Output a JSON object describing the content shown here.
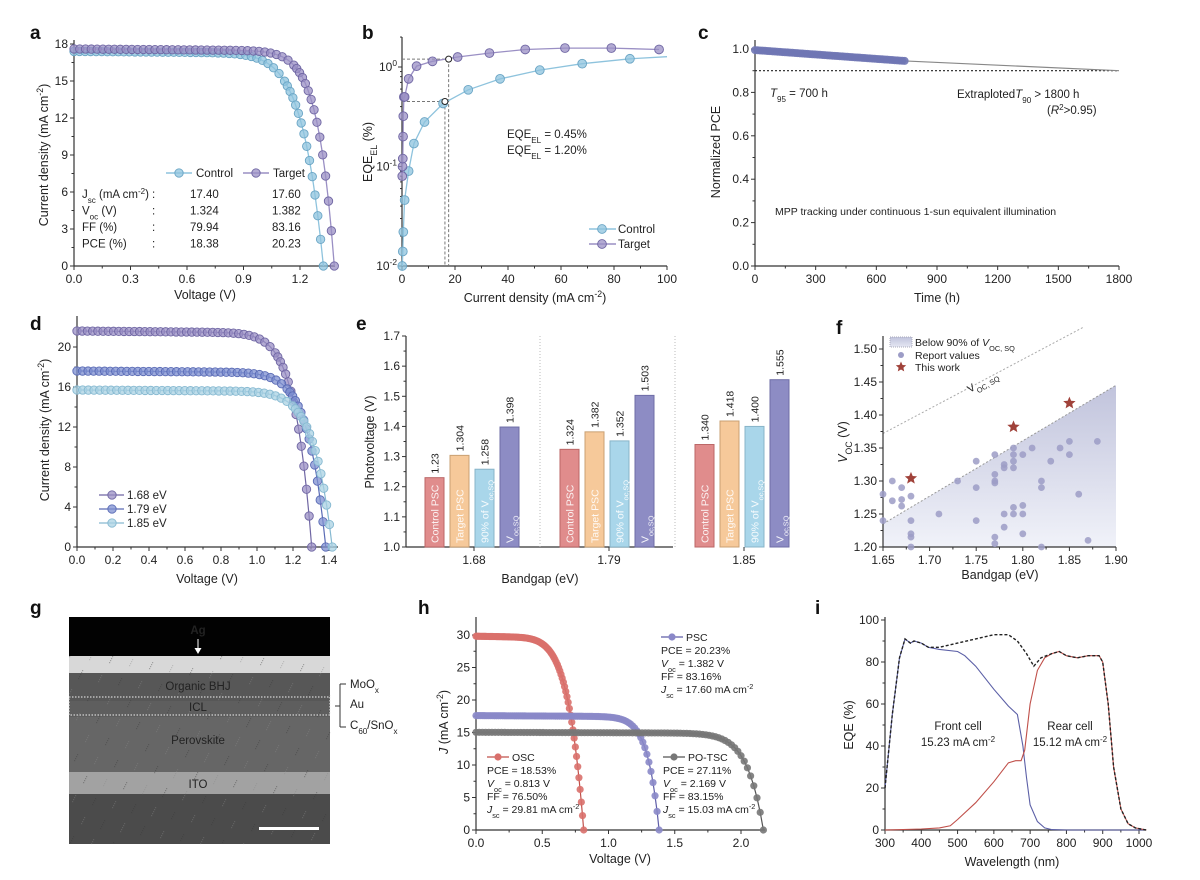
{
  "panels": {
    "a": {
      "letter": "a"
    },
    "b": {
      "letter": "b"
    },
    "c": {
      "letter": "c"
    },
    "d": {
      "letter": "d"
    },
    "e": {
      "letter": "e"
    },
    "f": {
      "letter": "f"
    },
    "g": {
      "letter": "g"
    },
    "h": {
      "letter": "h"
    },
    "i": {
      "letter": "i"
    }
  },
  "colors": {
    "control": "#8ec3dd",
    "target": "#9a8fc4",
    "bg168": "#9a8fc4",
    "bg179": "#7d8fd0",
    "bg185": "#a9d2e3",
    "bar_control": "#e08c8c",
    "bar_target": "#f6c99a",
    "bar_90": "#a9d6ea",
    "bar_sq": "#8d8cc4",
    "osc": "#d9706c",
    "psc": "#8a88c8",
    "potsc": "#777777",
    "star": "#a0423a",
    "scatter": "#9c9cc6"
  },
  "chart_data": [
    {
      "id": "a",
      "type": "line",
      "title": "",
      "xlabel": "Voltage (V)",
      "ylabel": "Current density (mA cm-2)",
      "xlim": [
        0,
        1.38
      ],
      "ylim": [
        0,
        18
      ],
      "xticks": [
        "0.0",
        "0.3",
        "0.6",
        "0.9",
        "1.2"
      ],
      "yticks": [
        "0",
        "3",
        "6",
        "9",
        "12",
        "15",
        "18"
      ],
      "series": [
        {
          "name": "Control",
          "jsc": 17.4,
          "voc": 1.324,
          "ff": 79.94,
          "pce": 18.38
        },
        {
          "name": "Target",
          "jsc": 17.6,
          "voc": 1.382,
          "ff": 83.16,
          "pce": 20.23
        }
      ],
      "table": {
        "rows": [
          {
            "label": "Jsc (mA cm-2)",
            "sep": ":",
            "control": "17.40",
            "target": "17.60"
          },
          {
            "label": "Voc (V)",
            "sep": ":",
            "control": "1.324",
            "target": "1.382"
          },
          {
            "label": "FF (%)",
            "sep": ":",
            "control": "79.94",
            "target": "83.16"
          },
          {
            "label": "PCE (%)",
            "sep": ":",
            "control": "18.38",
            "target": "20.23"
          }
        ]
      },
      "legend": [
        "Control",
        "Target"
      ],
      "legend_position": "center-right"
    },
    {
      "id": "b",
      "type": "line",
      "yscale": "log",
      "xlabel": "Current density (mA cm-2)",
      "ylabel": "EQE_EL (%)",
      "xlim": [
        0,
        100
      ],
      "ylim": [
        0.01,
        2.2
      ],
      "xticks": [
        "0",
        "20",
        "40",
        "60",
        "80",
        "100"
      ],
      "yticks": [
        "10^-2",
        "10^-1",
        "10^0"
      ],
      "series": [
        {
          "name": "Control",
          "x": [
            0.1,
            0.3,
            0.5,
            1,
            2.5,
            4.5,
            8.5,
            15.5,
            25,
            37,
            52,
            68,
            86,
            100
          ],
          "y": [
            0.01,
            0.014,
            0.022,
            0.046,
            0.09,
            0.17,
            0.28,
            0.43,
            0.59,
            0.76,
            0.93,
            1.08,
            1.21,
            1.27
          ]
        },
        {
          "name": "Target",
          "x": [
            0.1,
            0.2,
            0.3,
            0.4,
            0.5,
            0.7,
            1,
            2.5,
            5.5,
            11.5,
            21,
            33,
            46.5,
            61.5,
            79,
            97
          ],
          "y": [
            0.08,
            0.1,
            0.12,
            0.2,
            0.32,
            0.5,
            0.5,
            0.76,
            1.02,
            1.14,
            1.26,
            1.38,
            1.5,
            1.55,
            1.55,
            1.5
          ]
        }
      ],
      "annotations": [
        "EQE_EL = 0.45%",
        "EQE_EL = 1.20%"
      ],
      "markers": [
        {
          "x": 16.2,
          "y": 0.45
        },
        {
          "x": 17.6,
          "y": 1.2
        }
      ],
      "legend": [
        "Control",
        "Target"
      ],
      "legend_position": "bottom-right"
    },
    {
      "id": "c",
      "type": "line",
      "xlabel": "Time (h)",
      "ylabel": "Normalized PCE",
      "xlim": [
        0,
        1800
      ],
      "ylim": [
        0,
        1.05
      ],
      "xticks": [
        "0",
        "300",
        "600",
        "900",
        "1200",
        "1500",
        "1800"
      ],
      "yticks": [
        "0.0",
        "0.2",
        "0.4",
        "0.6",
        "0.8",
        "1.0"
      ],
      "measured": {
        "x_start": 0,
        "x_end": 740,
        "y_start": 0.995,
        "y_end": 0.945
      },
      "extrapolation": {
        "x_start": 740,
        "x_end": 1800,
        "y_start": 0.945,
        "y_end": 0.9
      },
      "reference_line": 0.9,
      "annotations": [
        "T95 = 700 h",
        "Extraploted T90 > 1800 h",
        "(R2>0.95)",
        "MPP tracking under continuous 1-sun equivalent illumination"
      ]
    },
    {
      "id": "d",
      "type": "line",
      "xlabel": "Voltage (V)",
      "ylabel": "Current density (mA cm-2)",
      "xlim": [
        0,
        1.43
      ],
      "ylim": [
        0,
        22.5
      ],
      "xticks": [
        "0.0",
        "0.2",
        "0.4",
        "0.6",
        "0.8",
        "1.0",
        "1.2",
        "1.4"
      ],
      "yticks": [
        "0",
        "4",
        "8",
        "12",
        "16",
        "20"
      ],
      "series": [
        {
          "name": "1.68 eV",
          "jsc": 21.6,
          "voc": 1.304
        },
        {
          "name": "1.79 eV",
          "jsc": 17.6,
          "voc": 1.382
        },
        {
          "name": "1.85 eV",
          "jsc": 15.7,
          "voc": 1.418
        }
      ],
      "legend": [
        "1.68 eV",
        "1.79 eV",
        "1.85 eV"
      ],
      "legend_position": "bottom-left"
    },
    {
      "id": "e",
      "type": "bar",
      "xlabel": "Bandgap (eV)",
      "ylabel": "Photovoltage (V)",
      "ylim": [
        1.0,
        1.7
      ],
      "yticks": [
        "1.0",
        "1.1",
        "1.2",
        "1.3",
        "1.4",
        "1.5",
        "1.6",
        "1.7"
      ],
      "categories": [
        "1.68",
        "1.79",
        "1.85"
      ],
      "series": [
        {
          "name": "Control PSC",
          "values": [
            1.23,
            1.324,
            1.34
          ]
        },
        {
          "name": "Target PSC",
          "values": [
            1.304,
            1.382,
            1.418
          ]
        },
        {
          "name": "90% of Voc,SQ",
          "values": [
            1.258,
            1.352,
            1.4
          ]
        },
        {
          "name": "Voc,SQ",
          "values": [
            1.398,
            1.503,
            1.555
          ]
        }
      ],
      "value_labels": [
        [
          "1.23",
          "1.304",
          "1.258",
          "1.398"
        ],
        [
          "1.324",
          "1.382",
          "1.352",
          "1.503"
        ],
        [
          "1.340",
          "1.418",
          "1.400",
          "1.555"
        ]
      ]
    },
    {
      "id": "f",
      "type": "scatter",
      "xlabel": "Bandgap (eV)",
      "ylabel": "VOC (V)",
      "xlim": [
        1.65,
        1.9
      ],
      "ylim": [
        1.2,
        1.52
      ],
      "xticks": [
        "1.65",
        "1.70",
        "1.75",
        "1.80",
        "1.85",
        "1.90"
      ],
      "yticks": [
        "1.20",
        "1.25",
        "1.30",
        "1.35",
        "1.40",
        "1.45",
        "1.50"
      ],
      "legend": [
        "Below 90% of VOC,SQ",
        "Report values",
        "This work"
      ],
      "legend_position": "top-left",
      "line_label": "VOC,SQ",
      "sq_line": {
        "x": [
          1.65,
          1.875
        ],
        "y": [
          1.372,
          1.54
        ]
      },
      "ninety_line": {
        "x": [
          1.65,
          1.9
        ],
        "y": [
          1.235,
          1.445
        ]
      },
      "report_values": [
        [
          1.65,
          1.28
        ],
        [
          1.65,
          1.24
        ],
        [
          1.66,
          1.3
        ],
        [
          1.66,
          1.27
        ],
        [
          1.67,
          1.29
        ],
        [
          1.67,
          1.272
        ],
        [
          1.67,
          1.262
        ],
        [
          1.68,
          1.277
        ],
        [
          1.68,
          1.24
        ],
        [
          1.68,
          1.22
        ],
        [
          1.68,
          1.215
        ],
        [
          1.68,
          1.2
        ],
        [
          1.71,
          1.25
        ],
        [
          1.73,
          1.3
        ],
        [
          1.75,
          1.33
        ],
        [
          1.75,
          1.29
        ],
        [
          1.75,
          1.24
        ],
        [
          1.77,
          1.34
        ],
        [
          1.77,
          1.31
        ],
        [
          1.77,
          1.3
        ],
        [
          1.77,
          1.297
        ],
        [
          1.77,
          1.215
        ],
        [
          1.77,
          1.205
        ],
        [
          1.78,
          1.325
        ],
        [
          1.78,
          1.32
        ],
        [
          1.78,
          1.25
        ],
        [
          1.78,
          1.23
        ],
        [
          1.79,
          1.35
        ],
        [
          1.79,
          1.34
        ],
        [
          1.79,
          1.33
        ],
        [
          1.79,
          1.32
        ],
        [
          1.79,
          1.26
        ],
        [
          1.79,
          1.25
        ],
        [
          1.8,
          1.34
        ],
        [
          1.8,
          1.263
        ],
        [
          1.8,
          1.25
        ],
        [
          1.8,
          1.22
        ],
        [
          1.81,
          1.35
        ],
        [
          1.82,
          1.3
        ],
        [
          1.82,
          1.29
        ],
        [
          1.82,
          1.2
        ],
        [
          1.83,
          1.33
        ],
        [
          1.84,
          1.35
        ],
        [
          1.85,
          1.36
        ],
        [
          1.85,
          1.34
        ],
        [
          1.86,
          1.28
        ],
        [
          1.87,
          1.21
        ],
        [
          1.88,
          1.36
        ]
      ],
      "this_work": [
        [
          1.68,
          1.304
        ],
        [
          1.79,
          1.382
        ],
        [
          1.85,
          1.418
        ]
      ]
    },
    {
      "id": "h",
      "type": "line",
      "xlabel": "Voltage (V)",
      "ylabel": "J (mA cm-2)",
      "xlim": [
        0,
        2.2
      ],
      "ylim": [
        0,
        32
      ],
      "xticks": [
        "0.0",
        "0.5",
        "1.0",
        "1.5",
        "2.0"
      ],
      "yticks": [
        "0",
        "5",
        "10",
        "15",
        "20",
        "25",
        "30"
      ],
      "series": [
        {
          "name": "OSC",
          "jsc": 29.81,
          "voc": 0.813,
          "ff": 76.5,
          "pce": 18.53
        },
        {
          "name": "PSC",
          "jsc": 17.6,
          "voc": 1.382,
          "ff": 83.16,
          "pce": 20.23
        },
        {
          "name": "PO-TSC",
          "jsc": 15.03,
          "voc": 2.169,
          "ff": 83.15,
          "pce": 27.11
        }
      ],
      "legend_blocks": {
        "psc": [
          "PSC",
          "PCE = 20.23%",
          "Voc = 1.382 V",
          "FF = 83.16%",
          "Jsc = 17.60 mA cm-2"
        ],
        "osc": [
          "OSC",
          "PCE = 18.53%",
          "Voc = 0.813 V",
          "FF = 76.50%",
          "Jsc = 29.81 mA cm-2"
        ],
        "potsc": [
          "PO-TSC",
          "PCE = 27.11%",
          "Voc = 2.169 V",
          "FF = 83.15%",
          "Jsc = 15.03 mA cm-2"
        ]
      }
    },
    {
      "id": "i",
      "type": "line",
      "xlabel": "Wavelength (nm)",
      "ylabel": "EQE (%)",
      "xlim": [
        300,
        1020
      ],
      "ylim": [
        0,
        100
      ],
      "xticks": [
        "300",
        "400",
        "500",
        "600",
        "700",
        "800",
        "900",
        "1000"
      ],
      "yticks": [
        "0",
        "20",
        "40",
        "60",
        "80",
        "100"
      ],
      "series": [
        {
          "name": "Front cell",
          "x": [
            300,
            320,
            340,
            355,
            370,
            380,
            400,
            420,
            450,
            500,
            520,
            550,
            600,
            640,
            665,
            680,
            690,
            700,
            720,
            740,
            760,
            800,
            1020
          ],
          "y": [
            20,
            55,
            82,
            91,
            89,
            90,
            89,
            87,
            86,
            85,
            83,
            78,
            67,
            59,
            55,
            40,
            25,
            12,
            4,
            1,
            0.2,
            0,
            0
          ]
        },
        {
          "name": "Rear cell",
          "x": [
            300,
            400,
            450,
            480,
            500,
            550,
            600,
            640,
            660,
            675,
            685,
            700,
            720,
            740,
            760,
            780,
            800,
            830,
            860,
            890,
            900,
            915,
            930,
            950,
            970,
            990,
            1020
          ],
          "y": [
            0,
            0.5,
            1,
            2,
            5,
            13,
            23,
            32,
            33,
            33,
            38,
            60,
            76,
            82,
            84,
            85,
            83,
            82,
            83,
            83,
            80,
            60,
            30,
            10,
            3,
            1,
            0
          ]
        },
        {
          "name": "Sum",
          "x": [
            300,
            320,
            340,
            355,
            370,
            380,
            400,
            420,
            450,
            500,
            550,
            600,
            640,
            665,
            690,
            710,
            730,
            760,
            780,
            800,
            830,
            860,
            890,
            900,
            915,
            930,
            950,
            970,
            990,
            1020
          ],
          "y": [
            20,
            55,
            82,
            91,
            89,
            90,
            89,
            87,
            87,
            89,
            91,
            93,
            93,
            90,
            84,
            78,
            82,
            84,
            85,
            83,
            82,
            83,
            83,
            80,
            60,
            30,
            10,
            3,
            1,
            0
          ]
        }
      ],
      "annotations": [
        {
          "lines": [
            "Front cell",
            "15.23 mA cm-2"
          ]
        },
        {
          "lines": [
            "Rear cell",
            "15.12 mA cm-2"
          ]
        }
      ]
    }
  ],
  "g_image": {
    "layers": [
      "Ag",
      "Organic BHJ",
      "ICL",
      "Perovskite",
      "ITO"
    ],
    "icl_components": [
      "MoOx",
      "Au",
      "C60/SnOx"
    ]
  }
}
